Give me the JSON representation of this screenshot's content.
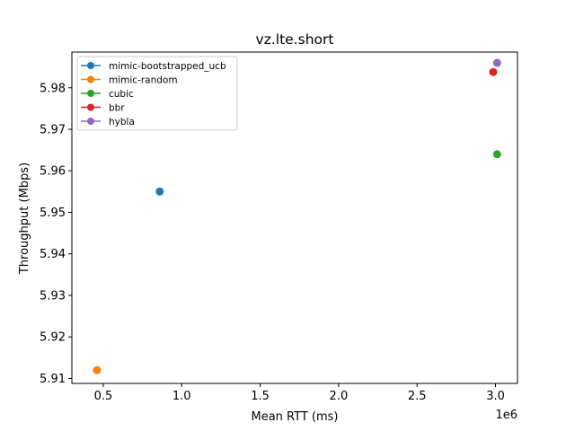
{
  "chart_data": {
    "type": "scatter",
    "title": "vz.lte.short",
    "xlabel": "Mean RTT (ms)",
    "ylabel": "Throughput (Mbps)",
    "x_offset_label": "1e6",
    "xlim": [
      0.3,
      3.14
    ],
    "ylim": [
      5.9088,
      5.9886
    ],
    "xticks": [
      0.5,
      1.0,
      1.5,
      2.0,
      2.5,
      3.0
    ],
    "xtick_labels": [
      "0.5",
      "1.0",
      "1.5",
      "2.0",
      "2.5",
      "3.0"
    ],
    "yticks": [
      5.91,
      5.92,
      5.93,
      5.94,
      5.95,
      5.96,
      5.97,
      5.98
    ],
    "ytick_labels": [
      "5.91",
      "5.92",
      "5.93",
      "5.94",
      "5.95",
      "5.96",
      "5.97",
      "5.98"
    ],
    "grid": false,
    "legend_position": "top-left",
    "series": [
      {
        "name": "mimic-bootstrapped_ucb",
        "color": "#1f77b4",
        "points": [
          [
            0.86,
            5.955
          ]
        ]
      },
      {
        "name": "mimic-random",
        "color": "#ff7f0e",
        "points": [
          [
            0.46,
            5.912
          ]
        ]
      },
      {
        "name": "cubic",
        "color": "#2ca02c",
        "points": [
          [
            3.01,
            5.964
          ]
        ]
      },
      {
        "name": "bbr",
        "color": "#d62728",
        "points": [
          [
            2.985,
            5.9838
          ]
        ]
      },
      {
        "name": "hybla",
        "color": "#9467bd",
        "points": [
          [
            3.01,
            5.986
          ]
        ]
      }
    ]
  }
}
